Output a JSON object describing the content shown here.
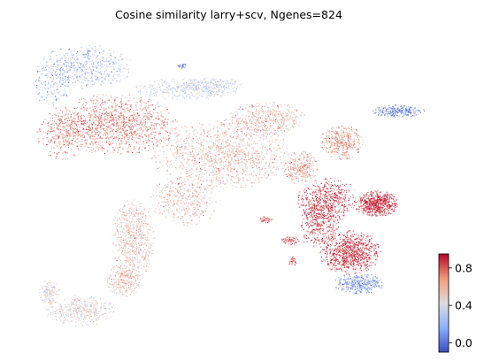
{
  "chart_data": {
    "type": "scatter",
    "title": "Cosine similarity larry+scv, Ngenes=824",
    "xlabel": "",
    "ylabel": "",
    "grid": false,
    "axes_visible": false,
    "colormap": "coolwarm",
    "colorbar": {
      "position": "right",
      "range": [
        -0.1,
        0.95
      ],
      "ticks": [
        0.0,
        0.4,
        0.8
      ],
      "tick_labels": [
        "0.0",
        "0.4",
        "0.8"
      ]
    },
    "regions": [
      {
        "name": "upper-left lobe",
        "mean_similarity": 0.2
      },
      {
        "name": "left-center mass",
        "mean_similarity": 0.72
      },
      {
        "name": "central body",
        "mean_similarity": 0.58
      },
      {
        "name": "upper bridge",
        "mean_similarity": 0.35
      },
      {
        "name": "right tip",
        "mean_similarity": 0.05
      },
      {
        "name": "right stem",
        "mean_similarity": 0.65
      },
      {
        "name": "right arm",
        "mean_similarity": 0.9
      },
      {
        "name": "lower-right cluster",
        "mean_similarity": 0.88
      },
      {
        "name": "lower-right edge",
        "mean_similarity": 0.1
      },
      {
        "name": "lower-left arm",
        "mean_similarity": 0.55
      },
      {
        "name": "lower-left hook",
        "mean_similarity": 0.45
      },
      {
        "name": "small islands",
        "mean_similarity": 0.8
      }
    ],
    "colors": {
      "low": "#3b4cc0",
      "mid": "#dddddd",
      "high": "#b40426"
    }
  }
}
